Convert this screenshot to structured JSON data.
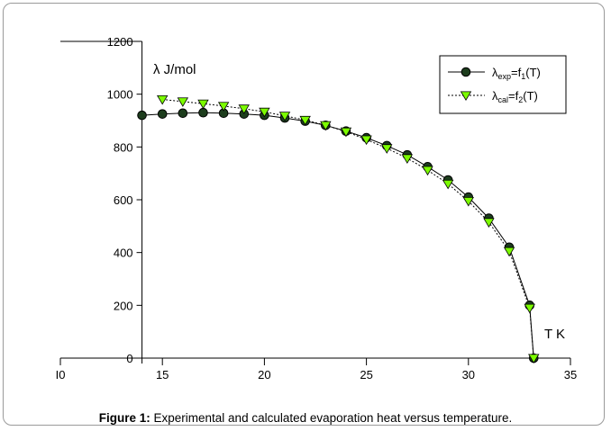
{
  "caption": {
    "label": "Figure 1:",
    "text": " Experimental and calculated evaporation heat versus temperature."
  },
  "chart_data": {
    "type": "line",
    "title": "",
    "ylabel": "λ  J/mol",
    "xlabel": "T K",
    "xlim": [
      10,
      35
    ],
    "ylim": [
      0,
      1200
    ],
    "xticks": [
      10,
      15,
      20,
      25,
      30,
      35
    ],
    "xtick_labels": [
      "I0",
      "15",
      "20",
      "25",
      "30",
      "35"
    ],
    "yticks": [
      0,
      200,
      400,
      600,
      800,
      1000,
      1200
    ],
    "grid": false,
    "legend_position": "top-right",
    "series": [
      {
        "name": "λexp=f1(T)",
        "name_parts": {
          "base": "λ",
          "sub": "exp",
          "mid": "=f",
          "sub2": "1",
          "end": "(T)"
        },
        "marker": "circle",
        "line": "solid",
        "color": "#1d3d1d",
        "x": [
          14,
          15,
          16,
          17,
          18,
          19,
          20,
          21,
          22,
          23,
          24,
          25,
          26,
          27,
          28,
          29,
          30,
          31,
          32,
          33,
          33.2
        ],
        "y": [
          920,
          925,
          928,
          930,
          928,
          925,
          920,
          910,
          898,
          882,
          860,
          835,
          805,
          770,
          725,
          675,
          610,
          530,
          420,
          200,
          0
        ]
      },
      {
        "name": "λcal=f2(T)",
        "name_parts": {
          "base": "λ",
          "sub": "cal",
          "mid": "=f",
          "sub2": "2",
          "end": "(T)"
        },
        "marker": "triangle-down",
        "line": "dotted",
        "color": "#7cfc00",
        "x": [
          15,
          16,
          17,
          18,
          19,
          20,
          21,
          22,
          23,
          24,
          25,
          26,
          27,
          28,
          29,
          30,
          31,
          32,
          33,
          33.2
        ],
        "y": [
          980,
          972,
          964,
          955,
          945,
          933,
          918,
          902,
          882,
          858,
          828,
          795,
          757,
          712,
          660,
          595,
          515,
          405,
          190,
          0
        ]
      }
    ]
  }
}
